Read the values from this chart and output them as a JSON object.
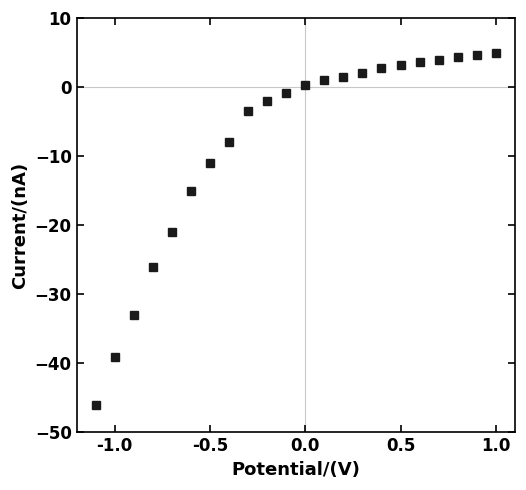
{
  "x": [
    -1.1,
    -1.0,
    -0.9,
    -0.8,
    -0.7,
    -0.6,
    -0.5,
    -0.4,
    -0.3,
    -0.2,
    -0.1,
    0.0,
    0.1,
    0.2,
    0.3,
    0.4,
    0.5,
    0.6,
    0.7,
    0.8,
    0.9,
    1.0
  ],
  "y": [
    -46,
    -39,
    -33,
    -26,
    -21,
    -15,
    -11,
    -8,
    -3.5,
    -2,
    -0.8,
    0.3,
    1.0,
    1.5,
    2.0,
    2.8,
    3.2,
    3.7,
    4.0,
    4.4,
    4.7,
    5.0
  ],
  "xlabel": "Potential/(V)",
  "ylabel": "Current/(nA)",
  "xlim": [
    -1.2,
    1.1
  ],
  "ylim": [
    -50,
    10
  ],
  "xticks": [
    -1.0,
    -0.5,
    0.0,
    0.5,
    1.0
  ],
  "xtick_labels": [
    "-1.0",
    "-0.5",
    "0.0",
    "0.5",
    "1.0"
  ],
  "yticks": [
    -50,
    -40,
    -30,
    -20,
    -10,
    0,
    10
  ],
  "marker": "s",
  "markersize": 6,
  "color": "#1a1a1a",
  "linewidth": 0,
  "grid_color": "#c8c8c8",
  "bg_color": "#ffffff",
  "xlabel_fontsize": 13,
  "ylabel_fontsize": 13,
  "tick_fontsize": 12
}
